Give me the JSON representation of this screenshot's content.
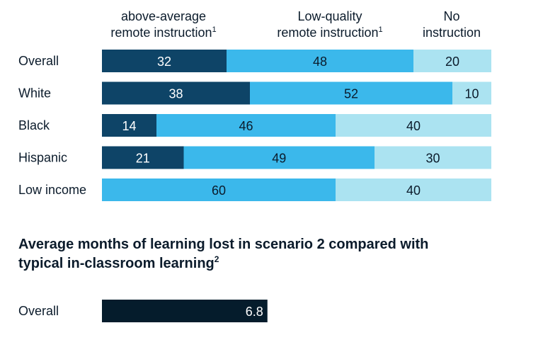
{
  "colors": {
    "dark": "#0e4467",
    "mid": "#3bb8eb",
    "light": "#abe3f1",
    "navy": "#051c2c",
    "text": "#0b1b2b",
    "white": "#ffffff"
  },
  "chart_data": [
    {
      "type": "bar",
      "orientation": "horizontal",
      "stacked": true,
      "legend_position": "top",
      "categories": [
        "Overall",
        "White",
        "Black",
        "Hispanic",
        "Low income"
      ],
      "series": [
        {
          "name_lines": [
            "above-average",
            "remote instruction"
          ],
          "footnote": "1",
          "color_key": "dark",
          "values": [
            32,
            38,
            14,
            21,
            0
          ]
        },
        {
          "name_lines": [
            "Low-quality",
            "remote instruction"
          ],
          "footnote": "1",
          "color_key": "mid",
          "values": [
            48,
            52,
            46,
            49,
            60
          ]
        },
        {
          "name_lines": [
            "No",
            "instruction"
          ],
          "footnote": "",
          "color_key": "light",
          "values": [
            20,
            10,
            40,
            30,
            40
          ]
        }
      ],
      "xlim": [
        0,
        100
      ]
    },
    {
      "type": "bar",
      "orientation": "horizontal",
      "title_lines": [
        "Average months of learning lost in scenario 2 compared with",
        "typical in-classroom learning"
      ],
      "title_footnote": "2",
      "categories": [
        "Overall"
      ],
      "values": [
        6.8
      ],
      "value_labels": [
        "6.8"
      ],
      "color_key": "navy"
    }
  ]
}
